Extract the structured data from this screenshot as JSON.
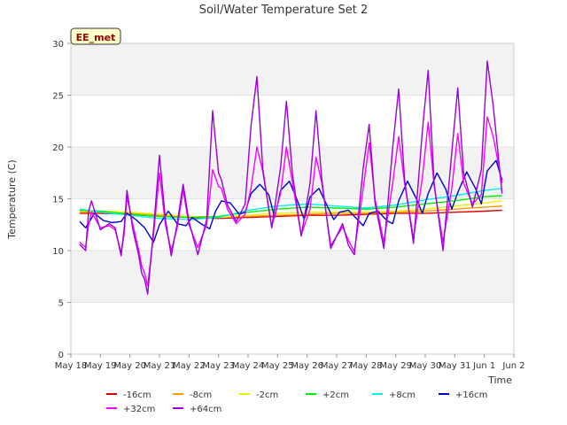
{
  "chart_data": {
    "type": "line",
    "title": "Soil/Water Temperature Set 2",
    "badge": "EE_met",
    "xlabel": "Time",
    "ylabel": "Temperature (C)",
    "xlim": [
      18,
      33
    ],
    "ylim": [
      0,
      30
    ],
    "yticks": [
      0,
      5,
      10,
      15,
      20,
      25,
      30
    ],
    "xticks": [
      {
        "x": 18,
        "label": "May 18"
      },
      {
        "x": 19,
        "label": "May 19"
      },
      {
        "x": 20,
        "label": "May 20"
      },
      {
        "x": 21,
        "label": "May 21"
      },
      {
        "x": 22,
        "label": "May 22"
      },
      {
        "x": 23,
        "label": "May 23"
      },
      {
        "x": 24,
        "label": "May 24"
      },
      {
        "x": 25,
        "label": "May 25"
      },
      {
        "x": 26,
        "label": "May 26"
      },
      {
        "x": 27,
        "label": "May 27"
      },
      {
        "x": 28,
        "label": "May 28"
      },
      {
        "x": 29,
        "label": "May 29"
      },
      {
        "x": 30,
        "label": "May 30"
      },
      {
        "x": 31,
        "label": "May 31"
      },
      {
        "x": 32,
        "label": "Jun 1"
      },
      {
        "x": 33,
        "label": "Jun 2"
      }
    ],
    "grid": "horizontal bands",
    "legend_position": "bottom",
    "series": [
      {
        "name": "-16cm",
        "color": "#dd0000",
        "x": [
          18.3,
          19,
          20,
          21,
          22,
          23,
          24,
          25,
          26,
          27,
          28,
          29,
          30,
          31,
          32,
          32.6
        ],
        "y": [
          13.6,
          13.6,
          13.5,
          13.3,
          13.2,
          13.1,
          13.2,
          13.3,
          13.4,
          13.4,
          13.5,
          13.6,
          13.6,
          13.7,
          13.8,
          13.9
        ]
      },
      {
        "name": "-8cm",
        "color": "#ff9900",
        "x": [
          18.3,
          19,
          20,
          21,
          22,
          23,
          24,
          25,
          26,
          27,
          28,
          29,
          30,
          31,
          32,
          32.6
        ],
        "y": [
          13.7,
          13.7,
          13.6,
          13.4,
          13.3,
          13.2,
          13.3,
          13.4,
          13.5,
          13.6,
          13.6,
          13.7,
          13.8,
          14.0,
          14.2,
          14.3
        ]
      },
      {
        "name": "-2cm",
        "color": "#eeee00",
        "x": [
          18.3,
          19,
          20,
          21,
          22,
          23,
          24,
          25,
          26,
          27,
          28,
          29,
          30,
          31,
          32,
          32.6
        ],
        "y": [
          13.8,
          13.8,
          13.7,
          13.5,
          13.3,
          13.2,
          13.4,
          13.6,
          13.7,
          13.7,
          13.7,
          13.8,
          14.0,
          14.3,
          14.6,
          14.8
        ]
      },
      {
        "name": "+2cm",
        "color": "#00ee00",
        "x": [
          18.3,
          19,
          20,
          21,
          22,
          23,
          24,
          25,
          26,
          27,
          28,
          29,
          30,
          31,
          32,
          32.6
        ],
        "y": [
          13.9,
          13.8,
          13.5,
          13.3,
          13.2,
          13.3,
          13.7,
          14.0,
          14.2,
          14.1,
          14.0,
          14.2,
          14.5,
          14.8,
          15.2,
          15.3
        ]
      },
      {
        "name": "+8cm",
        "color": "#00eeee",
        "x": [
          18.3,
          19,
          20,
          21,
          22,
          23,
          24,
          25,
          26,
          27,
          28,
          29,
          30,
          31,
          32,
          32.6
        ],
        "y": [
          14.0,
          13.7,
          13.4,
          13.1,
          13.0,
          13.2,
          13.9,
          14.3,
          14.5,
          14.3,
          14.1,
          14.4,
          14.9,
          15.3,
          15.8,
          16.0
        ]
      }
    ],
    "diurnal_series": [
      {
        "name": "+16cm",
        "color": "#0000cc",
        "x": [
          18.3,
          18.5,
          18.8,
          19.1,
          19.4,
          19.7,
          19.9,
          20.2,
          20.5,
          20.8,
          21.0,
          21.3,
          21.6,
          21.9,
          22.1,
          22.4,
          22.7,
          22.9,
          23.1,
          23.4,
          23.7,
          23.9,
          24.1,
          24.4,
          24.7,
          24.9,
          25.1,
          25.4,
          25.7,
          25.9,
          26.1,
          26.4,
          26.7,
          26.9,
          27.1,
          27.4,
          27.7,
          27.9,
          28.1,
          28.4,
          28.7,
          28.9,
          29.1,
          29.4,
          29.7,
          29.9,
          30.1,
          30.4,
          30.7,
          30.9,
          31.1,
          31.4,
          31.7,
          31.9,
          32.1,
          32.4,
          32.6
        ],
        "y": [
          12.8,
          12.2,
          13.6,
          12.9,
          12.7,
          12.8,
          13.6,
          13.0,
          12.2,
          10.8,
          12.5,
          13.8,
          12.6,
          12.4,
          13.2,
          12.6,
          12.1,
          13.8,
          14.8,
          14.6,
          13.5,
          13.7,
          15.5,
          16.4,
          15.4,
          13.2,
          15.8,
          16.7,
          14.6,
          13.0,
          15.2,
          16.0,
          14.2,
          13.0,
          13.7,
          13.9,
          13.0,
          12.4,
          13.6,
          13.8,
          12.9,
          12.6,
          14.8,
          16.7,
          15.0,
          13.6,
          15.5,
          17.5,
          15.9,
          14.0,
          15.6,
          17.6,
          16.0,
          14.5,
          17.7,
          18.7,
          16.8
        ]
      },
      {
        "name": "+32cm",
        "color": "#ff00ff",
        "x": [
          18.3,
          18.5,
          18.6,
          18.7,
          19.0,
          19.3,
          19.5,
          19.7,
          19.8,
          19.9,
          20.1,
          20.3,
          20.4,
          20.5,
          20.6,
          20.8,
          21.0,
          21.2,
          21.4,
          21.6,
          21.8,
          22.0,
          22.3,
          22.6,
          22.8,
          23.0,
          23.1,
          23.3,
          23.6,
          23.9,
          24.1,
          24.3,
          24.5,
          24.8,
          25.1,
          25.3,
          25.5,
          25.8,
          26.1,
          26.3,
          26.5,
          26.8,
          27.1,
          27.2,
          27.4,
          27.6,
          27.9,
          28.1,
          28.3,
          28.6,
          28.9,
          29.1,
          29.3,
          29.6,
          29.9,
          30.1,
          30.3,
          30.6,
          30.9,
          31.1,
          31.3,
          31.6,
          31.9,
          32.1,
          32.3,
          32.6
        ],
        "y": [
          10.8,
          10.3,
          12.5,
          13.7,
          12.2,
          12.4,
          12.0,
          9.8,
          11.5,
          15.2,
          12.5,
          10.0,
          8.5,
          7.8,
          6.6,
          11.5,
          17.5,
          12.5,
          10.0,
          12.2,
          15.8,
          12.5,
          10.3,
          12.5,
          17.8,
          16.2,
          16.0,
          14.0,
          12.6,
          13.5,
          16.0,
          20.0,
          17.6,
          12.3,
          15.5,
          20.0,
          16.6,
          11.5,
          14.0,
          19.0,
          16.5,
          10.5,
          11.8,
          12.3,
          11.0,
          9.9,
          16.0,
          20.4,
          15.0,
          10.8,
          16.5,
          21.0,
          16.5,
          11.2,
          17.0,
          22.4,
          16.3,
          10.8,
          16.0,
          21.3,
          16.5,
          14.5,
          15.4,
          22.9,
          21.0,
          16.5
        ]
      },
      {
        "name": "+64cm",
        "color": "#9900dd",
        "x": [
          18.3,
          18.5,
          18.6,
          18.7,
          19.0,
          19.3,
          19.5,
          19.7,
          19.8,
          19.9,
          20.1,
          20.3,
          20.4,
          20.5,
          20.6,
          20.8,
          21.0,
          21.2,
          21.4,
          21.6,
          21.8,
          22.0,
          22.3,
          22.6,
          22.8,
          23.0,
          23.1,
          23.3,
          23.6,
          23.9,
          24.1,
          24.3,
          24.5,
          24.8,
          25.1,
          25.3,
          25.5,
          25.8,
          26.1,
          26.3,
          26.5,
          26.8,
          27.1,
          27.2,
          27.4,
          27.6,
          27.9,
          28.1,
          28.3,
          28.6,
          28.9,
          29.1,
          29.3,
          29.6,
          29.9,
          30.1,
          30.3,
          30.6,
          30.9,
          31.1,
          31.3,
          31.6,
          31.9,
          32.1,
          32.3,
          32.6
        ],
        "y": [
          10.6,
          10.0,
          13.8,
          14.8,
          12.0,
          12.6,
          12.2,
          9.5,
          12.0,
          15.8,
          12.0,
          9.5,
          7.8,
          7.2,
          5.8,
          12.0,
          19.2,
          13.0,
          9.5,
          12.6,
          16.4,
          12.8,
          9.6,
          13.0,
          23.5,
          17.5,
          16.8,
          14.4,
          12.8,
          14.5,
          22.0,
          26.8,
          17.8,
          12.2,
          18.0,
          24.4,
          17.5,
          11.4,
          16.5,
          23.5,
          16.8,
          10.2,
          12.0,
          12.6,
          10.5,
          9.6,
          18.0,
          22.2,
          14.6,
          10.2,
          20.0,
          25.6,
          16.8,
          10.7,
          21.5,
          27.4,
          16.5,
          10.0,
          19.5,
          25.7,
          17.5,
          14.2,
          17.8,
          28.3,
          24.0,
          15.5
        ]
      }
    ]
  }
}
